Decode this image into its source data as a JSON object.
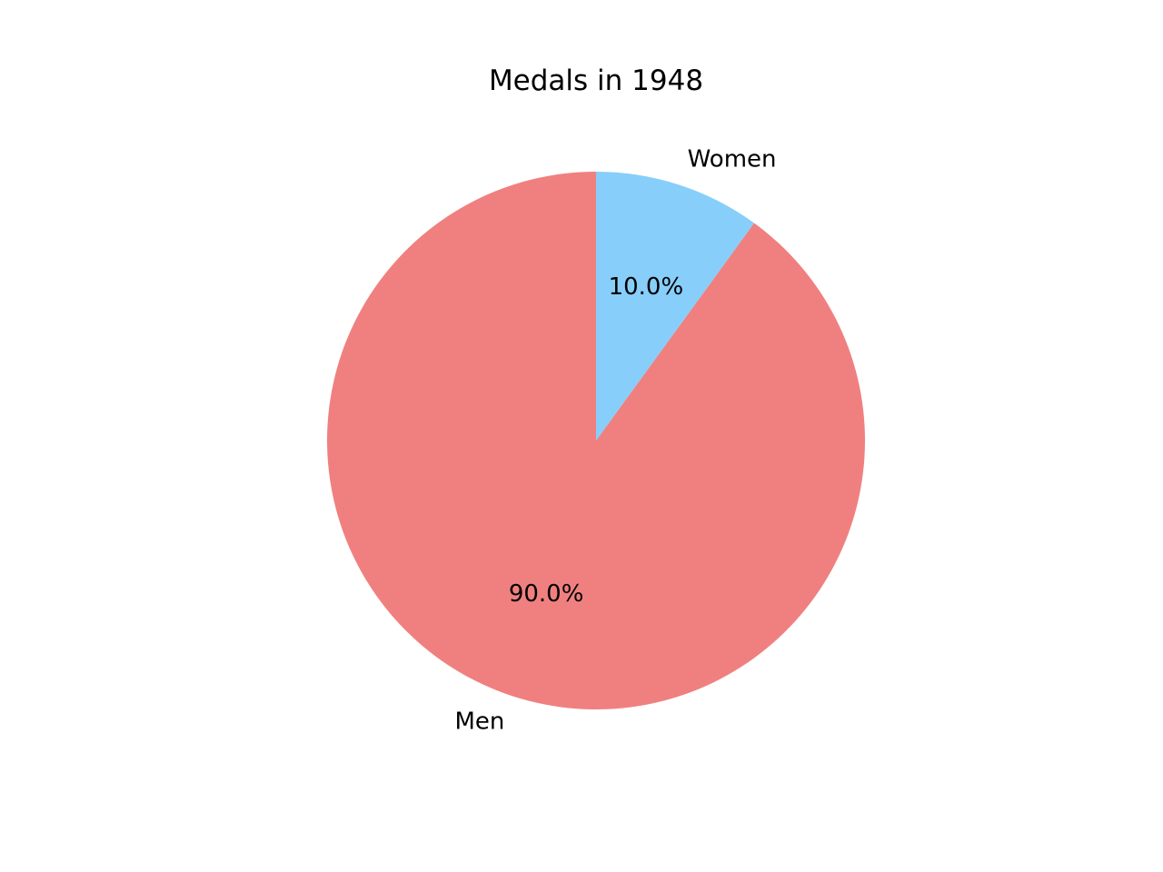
{
  "chart_data": {
    "type": "pie",
    "title": "Medals in 1948",
    "labels": [
      "Men",
      "Women"
    ],
    "values": [
      90.0,
      10.0
    ],
    "percent_labels": [
      "90.0%",
      "10.0%"
    ],
    "colors": [
      "#f08080",
      "#87cefa"
    ],
    "start_angle_deg": 90,
    "direction": "counterclockwise",
    "legend": "none"
  }
}
